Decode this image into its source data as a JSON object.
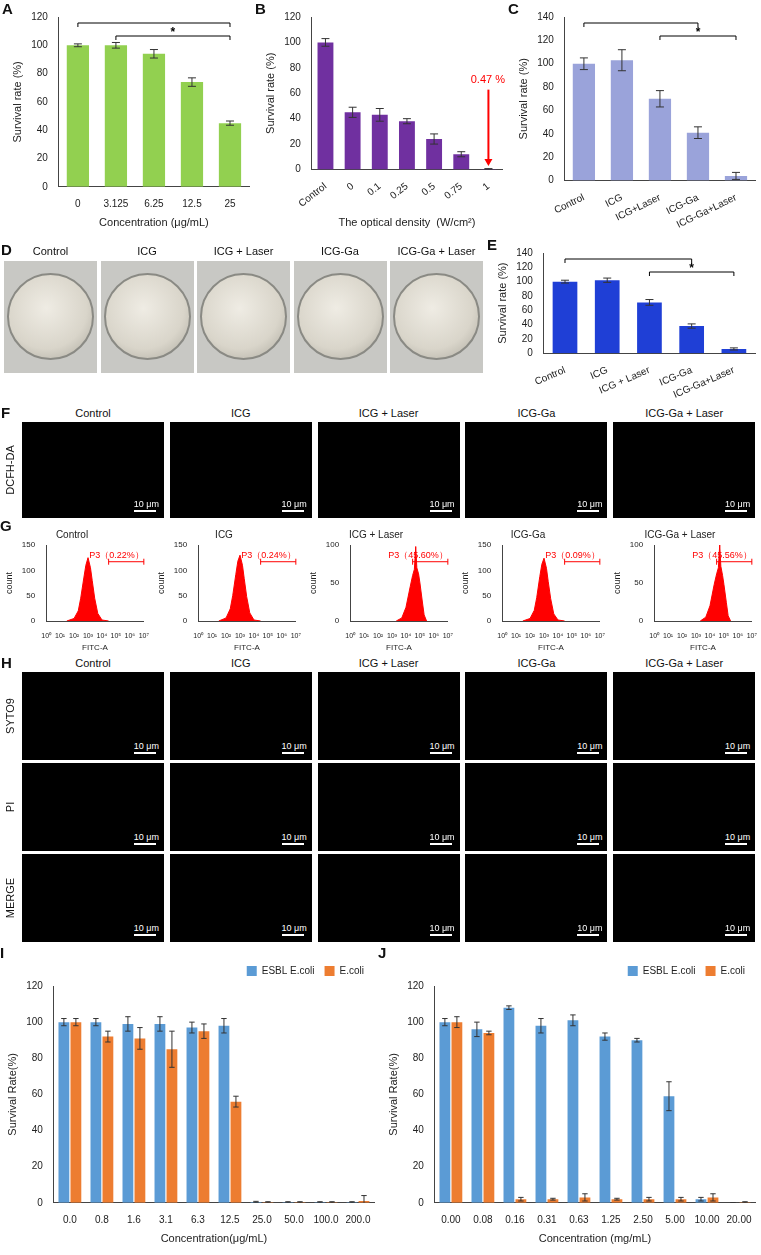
{
  "chart_data": [
    {
      "panel": "A",
      "type": "bar",
      "categories": [
        "0",
        "3.125",
        "6.25",
        "12.5",
        "25"
      ],
      "values": [
        100,
        100,
        94,
        74,
        45
      ],
      "errors": [
        1,
        2,
        3,
        3,
        1.5
      ],
      "color": "#92d050",
      "x_label": "Concentration (μg/mL)",
      "y_label": "Survival rate (%)",
      "ylim": [
        0,
        120
      ],
      "yticks": [
        0,
        20,
        40,
        60,
        80,
        100,
        120
      ],
      "grid": false,
      "brackets": [
        {
          "from": "0",
          "to": "25"
        },
        {
          "from": "3.125",
          "to": "25",
          "label": "*"
        }
      ]
    },
    {
      "panel": "B",
      "type": "bar",
      "categories": [
        "Control",
        "0",
        "0.1",
        "0.25",
        "0.5",
        "0.75",
        "1"
      ],
      "values": [
        100,
        45,
        43,
        38,
        24,
        12,
        0.47
      ],
      "errors": [
        3,
        4,
        5,
        2,
        4,
        2,
        0.2
      ],
      "color": "#7030a0",
      "x_label": "The optical density  (W/cm²)",
      "y_label": "Survival rate (%)",
      "ylim": [
        0,
        120
      ],
      "yticks": [
        0,
        20,
        40,
        60,
        80,
        100,
        120
      ],
      "grid": false,
      "annotations": [
        {
          "category": "1",
          "text": "0.47 %",
          "color": "#ff0000"
        }
      ]
    },
    {
      "panel": "C",
      "type": "bar",
      "categories": [
        "Control",
        "ICG",
        "ICG+Laser",
        "ICG-Ga",
        "ICG-Ga+Laser"
      ],
      "values": [
        100,
        103,
        70,
        41,
        4
      ],
      "errors": [
        5,
        9,
        7,
        5,
        3
      ],
      "color": "#9aa3da",
      "y_label": "Survival rate (%)",
      "ylim": [
        0,
        140
      ],
      "yticks": [
        0,
        20,
        40,
        60,
        80,
        100,
        120,
        140
      ],
      "grid": false,
      "brackets": [
        {
          "from": "Control",
          "to": "ICG-Ga"
        },
        {
          "from": "ICG+Laser",
          "to": "ICG-Ga+Laser",
          "label": "*"
        }
      ]
    },
    {
      "panel": "E",
      "type": "bar",
      "categories": [
        "Control",
        "ICG",
        "ICG + Laser",
        "ICG-Ga",
        "ICG-Ga+Laser"
      ],
      "values": [
        100,
        102,
        71,
        38,
        6
      ],
      "errors": [
        2,
        3,
        4,
        3,
        1.5
      ],
      "color": "#1f3fd6",
      "y_label": "Survival rate (%)",
      "ylim": [
        0,
        140
      ],
      "yticks": [
        0,
        20,
        40,
        60,
        80,
        100,
        120,
        140
      ],
      "grid": false,
      "brackets": [
        {
          "from": "Control",
          "to": "ICG-Ga"
        },
        {
          "from": "ICG + Laser",
          "to": "ICG-Ga+Laser",
          "label": "*"
        }
      ]
    },
    {
      "panel": "G",
      "type": "area",
      "title": "Control",
      "x": [
        30,
        100,
        200,
        300,
        500,
        700,
        1000,
        1500,
        2000,
        3000,
        5000,
        10000,
        30000
      ],
      "values": [
        0,
        5,
        20,
        45,
        85,
        110,
        125,
        105,
        80,
        45,
        15,
        2,
        0
      ],
      "color": "#ff0000",
      "x_label": "FITC-A",
      "y_label": "count",
      "log": "x",
      "xlim": [
        1,
        10000000
      ],
      "xticks": [
        {
          "value": 1,
          "label": "10⁰"
        },
        {
          "value": 10,
          "label": "10¹"
        },
        {
          "value": 100,
          "label": "10²"
        },
        {
          "value": 1000,
          "label": "10³"
        },
        {
          "value": 10000,
          "label": "10⁴"
        },
        {
          "value": 100000,
          "label": "10⁵"
        },
        {
          "value": 1000000,
          "label": "10⁶"
        },
        {
          "value": 10000000,
          "label": "10⁷"
        }
      ],
      "ylim": [
        0,
        150
      ],
      "yticks": [
        0,
        50,
        100,
        150
      ],
      "grid": false,
      "gate": {
        "from": 30000,
        "to": 10000000,
        "label": "P3（0.22%）"
      }
    },
    {
      "type": "area",
      "title": "ICG",
      "x": [
        30,
        100,
        200,
        300,
        500,
        700,
        1000,
        1500,
        2000,
        3000,
        5000,
        10000,
        30000
      ],
      "values": [
        0,
        6,
        24,
        50,
        92,
        118,
        130,
        110,
        84,
        48,
        16,
        2,
        0
      ],
      "color": "#ff0000",
      "x_label": "FITC-A",
      "y_label": "count",
      "log": "x",
      "xlim": [
        1,
        10000000
      ],
      "xticks": [
        {
          "value": 1,
          "label": "10⁰"
        },
        {
          "value": 10,
          "label": "10¹"
        },
        {
          "value": 100,
          "label": "10²"
        },
        {
          "value": 1000,
          "label": "10³"
        },
        {
          "value": 10000,
          "label": "10⁴"
        },
        {
          "value": 100000,
          "label": "10⁵"
        },
        {
          "value": 1000000,
          "label": "10⁶"
        },
        {
          "value": 10000000,
          "label": "10⁷"
        }
      ],
      "ylim": [
        0,
        150
      ],
      "yticks": [
        0,
        50,
        100,
        150
      ],
      "grid": false,
      "gate": {
        "from": 30000,
        "to": 10000000,
        "label": "P3（0.24%）"
      }
    },
    {
      "type": "area",
      "title": "ICG + Laser",
      "x": [
        2000,
        5000,
        10000,
        20000,
        30000,
        40000,
        50000,
        60000,
        80000,
        100000,
        150000,
        200000,
        300000
      ],
      "values": [
        0,
        4,
        18,
        45,
        60,
        68,
        98,
        70,
        62,
        50,
        25,
        8,
        0
      ],
      "color": "#ff0000",
      "x_label": "FITC-A",
      "y_label": "count",
      "log": "x",
      "xlim": [
        1,
        10000000
      ],
      "xticks": [
        {
          "value": 1,
          "label": "10⁰"
        },
        {
          "value": 10,
          "label": "10¹"
        },
        {
          "value": 100,
          "label": "10²"
        },
        {
          "value": 1000,
          "label": "10³"
        },
        {
          "value": 10000,
          "label": "10⁴"
        },
        {
          "value": 100000,
          "label": "10⁵"
        },
        {
          "value": 1000000,
          "label": "10⁶"
        },
        {
          "value": 10000000,
          "label": "10⁷"
        }
      ],
      "ylim": [
        0,
        100
      ],
      "yticks": [
        0,
        50,
        100
      ],
      "grid": false,
      "gate": {
        "from": 30000,
        "to": 10000000,
        "label": "P3（45.60%）"
      }
    },
    {
      "type": "area",
      "title": "ICG-Ga",
      "x": [
        30,
        100,
        200,
        300,
        500,
        700,
        1000,
        1500,
        2000,
        3000,
        5000,
        10000,
        30000
      ],
      "values": [
        0,
        5,
        21,
        46,
        88,
        112,
        124,
        104,
        78,
        44,
        14,
        2,
        0
      ],
      "color": "#ff0000",
      "x_label": "FITC-A",
      "y_label": "count",
      "log": "x",
      "xlim": [
        1,
        10000000
      ],
      "xticks": [
        {
          "value": 1,
          "label": "10⁰"
        },
        {
          "value": 10,
          "label": "10¹"
        },
        {
          "value": 100,
          "label": "10²"
        },
        {
          "value": 1000,
          "label": "10³"
        },
        {
          "value": 10000,
          "label": "10⁴"
        },
        {
          "value": 100000,
          "label": "10⁵"
        },
        {
          "value": 1000000,
          "label": "10⁶"
        },
        {
          "value": 10000000,
          "label": "10⁷"
        }
      ],
      "ylim": [
        0,
        150
      ],
      "yticks": [
        0,
        50,
        100,
        150
      ],
      "grid": false,
      "gate": {
        "from": 30000,
        "to": 10000000,
        "label": "P3（0.09%）"
      }
    },
    {
      "type": "area",
      "title": "ICG-Ga + Laser",
      "x": [
        2000,
        5000,
        10000,
        20000,
        30000,
        40000,
        50000,
        60000,
        80000,
        100000,
        150000,
        200000,
        300000
      ],
      "values": [
        0,
        5,
        20,
        48,
        62,
        70,
        100,
        72,
        60,
        48,
        24,
        7,
        0
      ],
      "color": "#ff0000",
      "x_label": "FITC-A",
      "y_label": "count",
      "log": "x",
      "xlim": [
        1,
        10000000
      ],
      "xticks": [
        {
          "value": 1,
          "label": "10⁰"
        },
        {
          "value": 10,
          "label": "10¹"
        },
        {
          "value": 100,
          "label": "10²"
        },
        {
          "value": 1000,
          "label": "10³"
        },
        {
          "value": 10000,
          "label": "10⁴"
        },
        {
          "value": 100000,
          "label": "10⁵"
        },
        {
          "value": 1000000,
          "label": "10⁶"
        },
        {
          "value": 10000000,
          "label": "10⁷"
        }
      ],
      "ylim": [
        0,
        100
      ],
      "yticks": [
        0,
        50,
        100
      ],
      "grid": false,
      "gate": {
        "from": 30000,
        "to": 10000000,
        "label": "P3（45.56%）"
      }
    },
    {
      "panel": "I",
      "type": "bar",
      "categories": [
        "0.0",
        "0.8",
        "1.6",
        "3.1",
        "6.3",
        "12.5",
        "25.0",
        "50.0",
        "100.0",
        "200.0"
      ],
      "series": [
        {
          "name": "ESBL E.coli",
          "color": "#5b9bd5",
          "values": [
            100,
            100,
            99,
            99,
            97,
            98,
            0.5,
            0.3,
            0.3,
            0.3
          ],
          "errors": [
            2,
            2,
            4,
            4,
            3,
            4,
            0.3,
            0.3,
            0.3,
            0.3
          ]
        },
        {
          "name": "E.coli",
          "color": "#ed7d31",
          "values": [
            100,
            92,
            91,
            85,
            95,
            56,
            0.3,
            0.3,
            0.3,
            1
          ],
          "errors": [
            2,
            3,
            6,
            10,
            4,
            3,
            0.3,
            0.3,
            0.3,
            3
          ]
        }
      ],
      "x_label": "Concentration(μg/mL)",
      "y_label": "Survival Rate(%)",
      "ylim": [
        0,
        120
      ],
      "yticks": [
        0,
        20,
        40,
        60,
        80,
        100,
        120
      ],
      "legend": "top-right",
      "grid": false
    },
    {
      "panel": "J",
      "type": "bar",
      "categories": [
        "0.00",
        "0.08",
        "0.16",
        "0.31",
        "0.63",
        "1.25",
        "2.50",
        "5.00",
        "10.00",
        "20.00"
      ],
      "series": [
        {
          "name": "ESBL E.coli",
          "color": "#5b9bd5",
          "values": [
            100,
            96,
            108,
            98,
            101,
            92,
            90,
            59,
            2,
            0
          ],
          "errors": [
            2,
            4,
            1,
            4,
            3,
            2,
            1,
            8,
            1,
            0
          ]
        },
        {
          "name": "E.coli",
          "color": "#ed7d31",
          "values": [
            100,
            94,
            2,
            2,
            3,
            2,
            2,
            2,
            3,
            0.3
          ],
          "errors": [
            3,
            1,
            1,
            0.5,
            2,
            0.5,
            1,
            1,
            2,
            0.3
          ]
        }
      ],
      "x_label": "Concentration (mg/mL)",
      "y_label": "Survival Rate(%)",
      "ylim": [
        0,
        120
      ],
      "yticks": [
        0,
        20,
        40,
        60,
        80,
        100,
        120
      ],
      "legend": "top-right",
      "grid": false
    }
  ],
  "image_panels": [
    {
      "panel": "D",
      "type": "photo",
      "titles": [
        "Control",
        "ICG",
        "ICG + Laser",
        "ICG-Ga",
        "ICG-Ga + Laser"
      ]
    },
    {
      "panel": "F",
      "type": "micrograph",
      "titles": [
        "Control",
        "ICG",
        "ICG + Laser",
        "ICG-Ga",
        "ICG-Ga + Laser"
      ],
      "row_labels": [
        "DCFH-DA"
      ],
      "scale_bar": "10 μm"
    },
    {
      "panel": "H",
      "type": "micrograph",
      "titles": [
        "Control",
        "ICG",
        "ICG + Laser",
        "ICG-Ga",
        "ICG-Ga + Laser"
      ],
      "row_labels": [
        "SYTO9",
        "PI",
        "MERGE"
      ],
      "scale_bar": "10 μm"
    }
  ]
}
